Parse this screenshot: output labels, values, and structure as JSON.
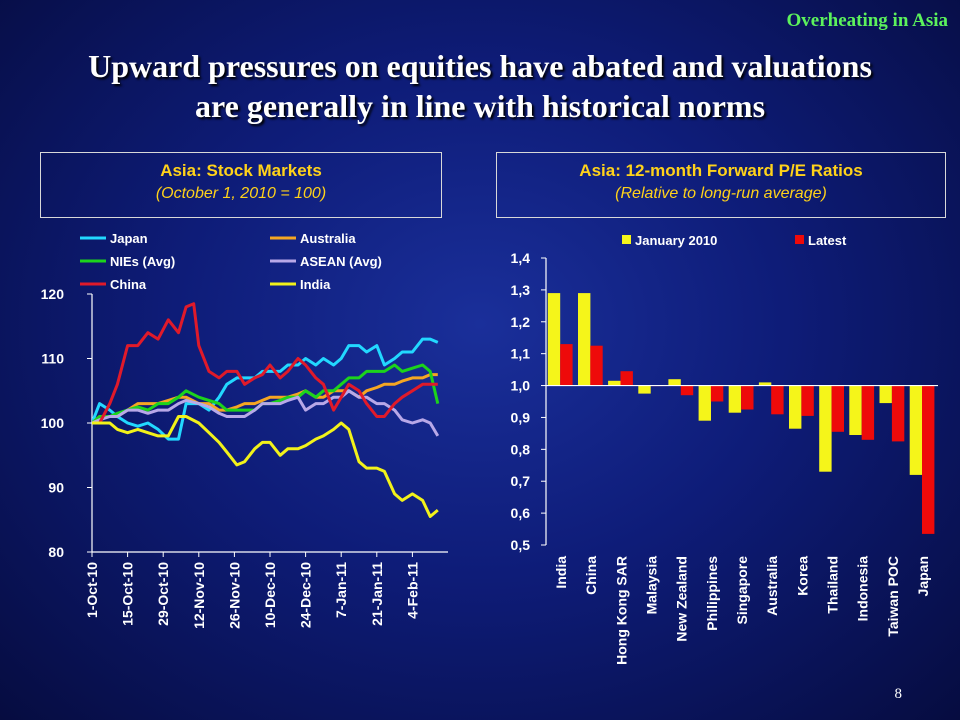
{
  "header": {
    "tag": "Overheating in Asia",
    "headline_line1": "Upward pressures on equities have abated and valuations",
    "headline_line2": "are generally in line with historical norms"
  },
  "left_box": {
    "title": "Asia: Stock Markets",
    "subtitle": "(October 1, 2010 = 100)"
  },
  "right_box": {
    "title": "Asia: 12-month Forward P/E Ratios",
    "subtitle": "(Relative to long-run average)"
  },
  "page_number": "8",
  "chart_data": [
    {
      "type": "line",
      "title": "Asia: Stock Markets",
      "subtitle": "(October 1, 2010 = 100)",
      "ylim": [
        80,
        120
      ],
      "yticks": [
        80,
        90,
        100,
        110,
        120
      ],
      "xlim": [
        0,
        140
      ],
      "xticks": [
        {
          "label": "1-Oct-10",
          "x": 0
        },
        {
          "label": "15-Oct-10",
          "x": 14
        },
        {
          "label": "29-Oct-10",
          "x": 28
        },
        {
          "label": "12-Nov-10",
          "x": 42
        },
        {
          "label": "26-Nov-10",
          "x": 56
        },
        {
          "label": "10-Dec-10",
          "x": 70
        },
        {
          "label": "24-Dec-10",
          "x": 84
        },
        {
          "label": "7-Jan-11",
          "x": 98
        },
        {
          "label": "21-Jan-11",
          "x": 112
        },
        {
          "label": "4-Feb-11",
          "x": 126
        }
      ],
      "legend_position": "top",
      "series": [
        {
          "name": "Japan",
          "color": "#22d8ff",
          "points": [
            [
              0,
              100
            ],
            [
              3,
              103
            ],
            [
              7,
              102
            ],
            [
              10,
              101
            ],
            [
              14,
              100
            ],
            [
              18,
              99.5
            ],
            [
              22,
              100
            ],
            [
              26,
              99
            ],
            [
              30,
              97.5
            ],
            [
              34,
              97.5
            ],
            [
              37,
              103
            ],
            [
              42,
              103
            ],
            [
              46,
              102
            ],
            [
              50,
              104
            ],
            [
              53,
              106
            ],
            [
              57,
              107
            ],
            [
              60,
              107
            ],
            [
              64,
              107
            ],
            [
              67,
              108
            ],
            [
              70,
              108
            ],
            [
              74,
              108
            ],
            [
              77,
              109
            ],
            [
              81,
              109
            ],
            [
              84,
              110
            ],
            [
              88,
              109
            ],
            [
              91,
              110
            ],
            [
              95,
              109
            ],
            [
              98,
              110
            ],
            [
              101,
              112
            ],
            [
              105,
              112
            ],
            [
              108,
              111
            ],
            [
              112,
              112
            ],
            [
              115,
              109
            ],
            [
              119,
              110
            ],
            [
              122,
              111
            ],
            [
              126,
              111
            ],
            [
              130,
              113
            ],
            [
              133,
              113
            ],
            [
              136,
              112.5
            ]
          ]
        },
        {
          "name": "Australia",
          "color": "#f5a623",
          "points": [
            [
              0,
              100
            ],
            [
              3,
              101
            ],
            [
              7,
              101
            ],
            [
              10,
              101
            ],
            [
              14,
              102
            ],
            [
              18,
              103
            ],
            [
              22,
              103
            ],
            [
              26,
              103
            ],
            [
              30,
              103.5
            ],
            [
              34,
              104
            ],
            [
              37,
              104
            ],
            [
              42,
              103
            ],
            [
              46,
              103
            ],
            [
              50,
              102
            ],
            [
              53,
              102
            ],
            [
              57,
              102.5
            ],
            [
              60,
              103
            ],
            [
              64,
              103
            ],
            [
              67,
              103.5
            ],
            [
              70,
              104
            ],
            [
              74,
              104
            ],
            [
              77,
              104
            ],
            [
              81,
              104.5
            ],
            [
              84,
              105
            ],
            [
              88,
              104
            ],
            [
              91,
              104
            ],
            [
              95,
              105
            ],
            [
              98,
              105
            ],
            [
              101,
              105
            ],
            [
              105,
              104
            ],
            [
              108,
              105
            ],
            [
              112,
              105.5
            ],
            [
              115,
              106
            ],
            [
              119,
              106
            ],
            [
              122,
              106.5
            ],
            [
              126,
              107
            ],
            [
              130,
              107
            ],
            [
              133,
              107.5
            ],
            [
              136,
              107.5
            ]
          ]
        },
        {
          "name": "NIEs (Avg)",
          "color": "#1cd31c",
          "points": [
            [
              0,
              100
            ],
            [
              3,
              101
            ],
            [
              7,
              101
            ],
            [
              10,
              101.5
            ],
            [
              14,
              102
            ],
            [
              18,
              102.5
            ],
            [
              22,
              102
            ],
            [
              26,
              103
            ],
            [
              30,
              103
            ],
            [
              34,
              104
            ],
            [
              37,
              105
            ],
            [
              42,
              104
            ],
            [
              46,
              103.5
            ],
            [
              50,
              103
            ],
            [
              53,
              102
            ],
            [
              57,
              102
            ],
            [
              60,
              102
            ],
            [
              64,
              102
            ],
            [
              67,
              103
            ],
            [
              70,
              103
            ],
            [
              74,
              103.5
            ],
            [
              77,
              104
            ],
            [
              81,
              104
            ],
            [
              84,
              105
            ],
            [
              88,
              104
            ],
            [
              91,
              105
            ],
            [
              95,
              105
            ],
            [
              98,
              106
            ],
            [
              101,
              107
            ],
            [
              105,
              107
            ],
            [
              108,
              108
            ],
            [
              112,
              108
            ],
            [
              115,
              108
            ],
            [
              119,
              109
            ],
            [
              122,
              108
            ],
            [
              126,
              108.5
            ],
            [
              130,
              109
            ],
            [
              133,
              108
            ],
            [
              136,
              103
            ]
          ]
        },
        {
          "name": "ASEAN (Avg)",
          "color": "#b8a8e8",
          "points": [
            [
              0,
              100
            ],
            [
              3,
              100.5
            ],
            [
              7,
              101
            ],
            [
              10,
              101
            ],
            [
              14,
              102
            ],
            [
              18,
              102
            ],
            [
              22,
              101.5
            ],
            [
              26,
              102
            ],
            [
              30,
              102
            ],
            [
              34,
              103
            ],
            [
              37,
              103.5
            ],
            [
              42,
              103
            ],
            [
              46,
              102.5
            ],
            [
              50,
              101.5
            ],
            [
              53,
              101
            ],
            [
              57,
              101
            ],
            [
              60,
              101
            ],
            [
              64,
              102
            ],
            [
              67,
              103
            ],
            [
              70,
              103
            ],
            [
              74,
              103
            ],
            [
              77,
              103.5
            ],
            [
              81,
              104
            ],
            [
              84,
              102
            ],
            [
              88,
              103
            ],
            [
              91,
              103
            ],
            [
              95,
              104
            ],
            [
              98,
              104
            ],
            [
              101,
              105
            ],
            [
              105,
              104
            ],
            [
              108,
              104
            ],
            [
              112,
              103
            ],
            [
              115,
              103
            ],
            [
              119,
              102
            ],
            [
              122,
              100.5
            ],
            [
              126,
              100
            ],
            [
              130,
              100.5
            ],
            [
              133,
              100
            ],
            [
              136,
              98
            ]
          ]
        },
        {
          "name": "China",
          "color": "#e01a2a",
          "points": [
            [
              0,
              100
            ],
            [
              3,
              100
            ],
            [
              7,
              103
            ],
            [
              10,
              106
            ],
            [
              14,
              112
            ],
            [
              18,
              112
            ],
            [
              22,
              114
            ],
            [
              26,
              113
            ],
            [
              30,
              116
            ],
            [
              34,
              114
            ],
            [
              37,
              118
            ],
            [
              40,
              118.5
            ],
            [
              42,
              112
            ],
            [
              46,
              108
            ],
            [
              50,
              107
            ],
            [
              53,
              108
            ],
            [
              57,
              108
            ],
            [
              60,
              106
            ],
            [
              64,
              107
            ],
            [
              67,
              107.5
            ],
            [
              70,
              109
            ],
            [
              74,
              107
            ],
            [
              77,
              108
            ],
            [
              81,
              110
            ],
            [
              84,
              109
            ],
            [
              88,
              107
            ],
            [
              91,
              106
            ],
            [
              95,
              102
            ],
            [
              98,
              104
            ],
            [
              101,
              106
            ],
            [
              105,
              105
            ],
            [
              108,
              103
            ],
            [
              112,
              101
            ],
            [
              115,
              101
            ],
            [
              119,
              103
            ],
            [
              122,
              104
            ],
            [
              126,
              105
            ],
            [
              130,
              106
            ],
            [
              133,
              106
            ],
            [
              136,
              106
            ]
          ]
        },
        {
          "name": "India",
          "color": "#f2f21a",
          "points": [
            [
              0,
              100
            ],
            [
              3,
              100
            ],
            [
              7,
              100
            ],
            [
              10,
              99
            ],
            [
              14,
              98.5
            ],
            [
              18,
              99
            ],
            [
              22,
              98.5
            ],
            [
              26,
              98
            ],
            [
              30,
              98
            ],
            [
              34,
              101
            ],
            [
              37,
              101
            ],
            [
              42,
              100
            ],
            [
              46,
              98.5
            ],
            [
              50,
              97
            ],
            [
              53,
              95.5
            ],
            [
              57,
              93.5
            ],
            [
              60,
              94
            ],
            [
              64,
              96
            ],
            [
              67,
              97
            ],
            [
              70,
              97
            ],
            [
              74,
              95
            ],
            [
              77,
              96
            ],
            [
              81,
              96
            ],
            [
              84,
              96.5
            ],
            [
              88,
              97.5
            ],
            [
              91,
              98
            ],
            [
              95,
              99
            ],
            [
              98,
              100
            ],
            [
              101,
              99
            ],
            [
              105,
              94
            ],
            [
              108,
              93
            ],
            [
              112,
              93
            ],
            [
              115,
              92.5
            ],
            [
              119,
              89
            ],
            [
              122,
              88
            ],
            [
              126,
              89
            ],
            [
              130,
              88
            ],
            [
              133,
              85.5
            ],
            [
              136,
              86.5
            ]
          ]
        }
      ]
    },
    {
      "type": "bar",
      "title": "Asia: 12-month Forward P/E Ratios",
      "subtitle": "(Relative to long-run average)",
      "ylim": [
        0.5,
        1.4
      ],
      "baseline": 1.0,
      "yticks": [
        "0,5",
        "0,6",
        "0,7",
        "0,8",
        "0,9",
        "1,0",
        "1,1",
        "1,2",
        "1,3",
        "1,4"
      ],
      "legend_position": "top",
      "categories": [
        "India",
        "China",
        "Hong Kong SAR",
        "Malaysia",
        "New Zealand",
        "Philippines",
        "Singapore",
        "Australia",
        "Korea",
        "Thailand",
        "Indonesia",
        "Taiwan POC",
        "Japan"
      ],
      "series": [
        {
          "name": "January 2010",
          "color": "#f5f51a",
          "values": [
            1.29,
            1.29,
            1.015,
            0.975,
            1.02,
            0.89,
            0.915,
            1.01,
            0.865,
            0.73,
            0.845,
            0.945,
            0.72
          ]
        },
        {
          "name": "Latest",
          "color": "#ee0a0a",
          "values": [
            1.13,
            1.125,
            1.045,
            1.0,
            0.97,
            0.95,
            0.925,
            0.91,
            0.905,
            0.855,
            0.83,
            0.825,
            0.535
          ]
        }
      ]
    }
  ]
}
